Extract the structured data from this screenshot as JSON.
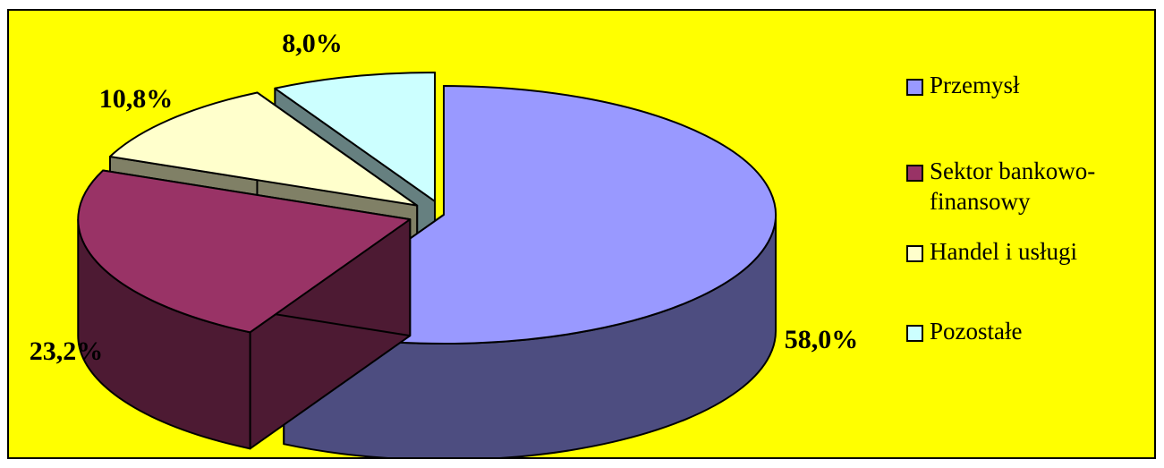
{
  "chart_data": {
    "type": "pie",
    "style": "3d-exploded",
    "title": "",
    "legend_position": "right",
    "background_color": "#ffff00",
    "slices": [
      {
        "name": "Przemysł",
        "value": 58.0,
        "label": "58,0%",
        "color": "#9999ff",
        "side_color": "#4d4d80"
      },
      {
        "name": "Sektor bankowo-finansowy",
        "value": 23.2,
        "label": "23,2%",
        "color": "#993366",
        "side_color": "#4d1a33"
      },
      {
        "name": "Handel i usługi",
        "value": 10.8,
        "label": "10,8%",
        "color": "#ffffcc",
        "side_color": "#808066"
      },
      {
        "name": "Pozostałe",
        "value": 8.0,
        "label": "8,0%",
        "color": "#ccffff",
        "side_color": "#668080"
      }
    ]
  }
}
